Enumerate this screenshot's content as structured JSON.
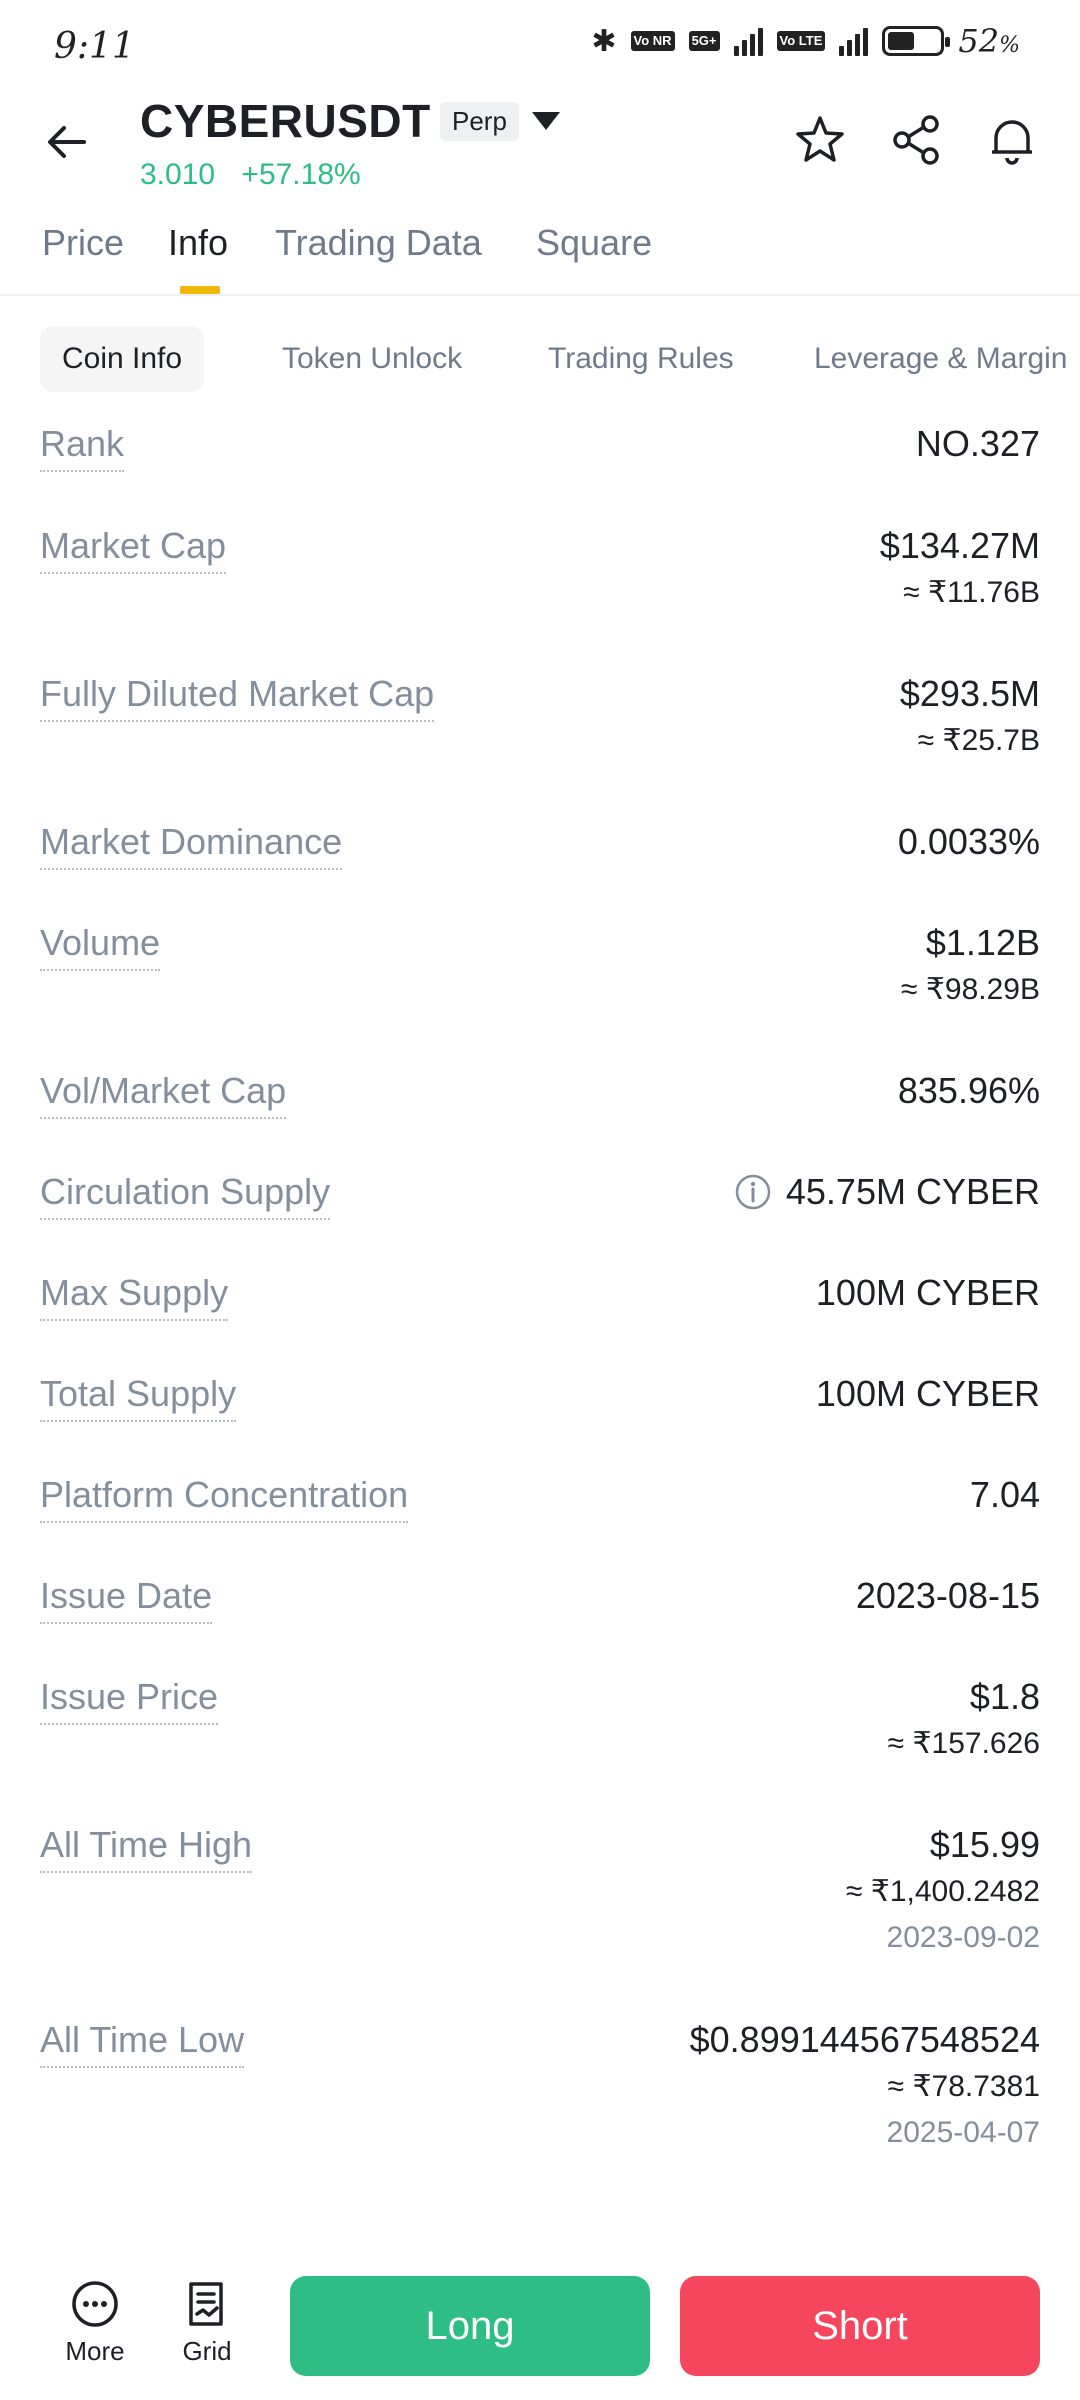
{
  "status_bar": {
    "time": "9:11",
    "battery_percent": "52",
    "battery_unit": "%",
    "battery_level": 0.52,
    "network_tags": [
      "Vo NR",
      "5G+",
      "Vo LTE"
    ]
  },
  "header": {
    "pair": "CYBERUSDT",
    "badge": "Perp",
    "price": "3.010",
    "change": "+57.18%",
    "colors": {
      "up": "#2ebd85",
      "down": "#f6465d",
      "accent": "#f0b90b"
    }
  },
  "main_tabs": [
    "Price",
    "Info",
    "Trading Data",
    "Square"
  ],
  "active_main_tab": "Info",
  "sub_tabs": [
    "Coin Info",
    "Token Unlock",
    "Trading Rules",
    "Leverage & Margin"
  ],
  "active_sub_tab": "Coin Info",
  "rows": [
    {
      "label": "Rank",
      "value": "NO.327"
    },
    {
      "label": "Market Cap",
      "value": "$134.27M",
      "sub": "≈ ₹11.76B"
    },
    {
      "label": "Fully Diluted Market Cap",
      "value": "$293.5M",
      "sub": "≈ ₹25.7B"
    },
    {
      "label": "Market Dominance",
      "value": "0.0033%"
    },
    {
      "label": "Volume",
      "value": "$1.12B",
      "sub": "≈ ₹98.29B"
    },
    {
      "label": "Vol/Market Cap",
      "value": "835.96%"
    },
    {
      "label": "Circulation Supply",
      "value": "45.75M CYBER",
      "icon": "info-icon"
    },
    {
      "label": "Max Supply",
      "value": "100M CYBER"
    },
    {
      "label": "Total Supply",
      "value": "100M CYBER"
    },
    {
      "label": "Platform Concentration",
      "value": "7.04"
    },
    {
      "label": "Issue Date",
      "value": "2023-08-15"
    },
    {
      "label": "Issue Price",
      "value": "$1.8",
      "sub": "≈ ₹157.626"
    },
    {
      "label": "All Time High",
      "value": "$15.99",
      "sub": "≈ ₹1,400.2482",
      "date": "2023-09-02"
    },
    {
      "label": "All Time Low",
      "value": "$0.899144567548524",
      "sub": "≈ ₹78.7381",
      "date": "2025-04-07"
    }
  ],
  "bottom_bar": {
    "more_label": "More",
    "grid_label": "Grid",
    "long_label": "Long",
    "short_label": "Short"
  }
}
